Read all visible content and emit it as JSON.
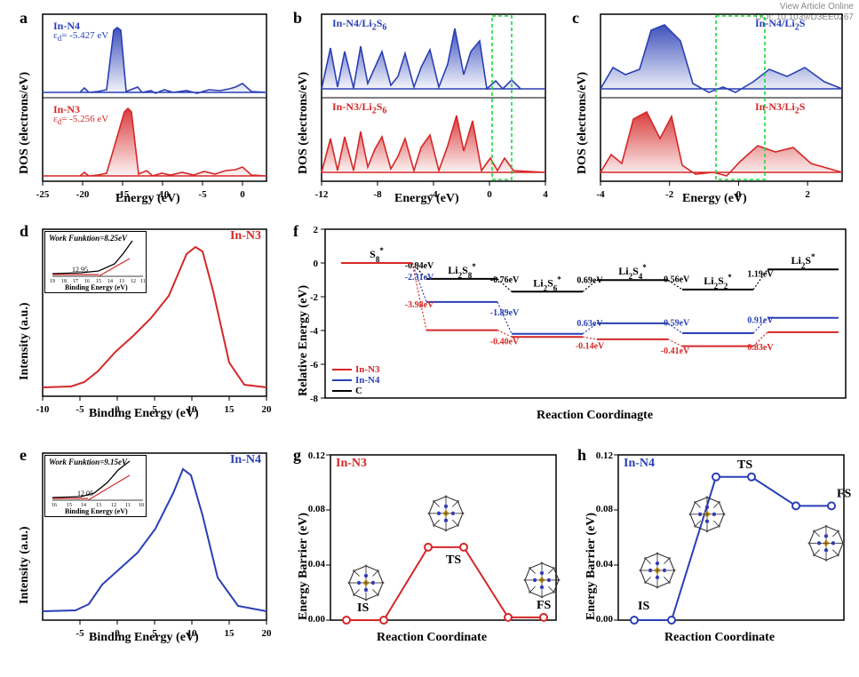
{
  "watermark": {
    "line1": "View Article Online",
    "line2": "DOI: 10.1039/D3EE0267"
  },
  "panel_a": {
    "label": "a",
    "ylabel": "DOS (electrons/eV)",
    "xlabel": "Energy (eV)",
    "s1": {
      "name": "In-N4",
      "color": "#2a3fb5",
      "sub": "ε_d= -5.427 eV"
    },
    "s2": {
      "name": "In-N3",
      "color": "#d52727",
      "sub": "ε_d= -5.256 eV"
    },
    "xlim": [
      -25,
      3
    ],
    "xticks": [
      -25,
      -20,
      -15,
      -10,
      -5,
      0
    ]
  },
  "panel_b": {
    "label": "b",
    "ylabel": "DOS (electrons/eV)",
    "xlabel": "Energy (eV)",
    "s1": {
      "name": "In-N4/Li₂S₆",
      "color": "#2a3fb5"
    },
    "s2": {
      "name": "In-N3/Li₂S₆",
      "color": "#d52727"
    },
    "xlim": [
      -12,
      4
    ],
    "xticks": [
      -12,
      -8,
      -4,
      0,
      4
    ],
    "highlight_green": true
  },
  "panel_c": {
    "label": "c",
    "ylabel": "DOS (electrons/eV)",
    "xlabel": "Energy (eV)",
    "s1": {
      "name": "In-N4/Li₂S",
      "color": "#2a3fb5"
    },
    "s2": {
      "name": "In-N3/Li₂S",
      "color": "#d52727"
    },
    "xlim": [
      -4,
      3
    ],
    "xticks": [
      -4,
      -2,
      0,
      2
    ],
    "highlight_green": true
  },
  "panel_d": {
    "label": "d",
    "ylabel": "Intensity (a.u.)",
    "xlabel": "Binding Energy (eV)",
    "title": "In-N3",
    "title_color": "#d52727",
    "color": "#d52727",
    "xlim": [
      -10,
      20
    ],
    "xticks": [
      -10,
      -5,
      0,
      5,
      10,
      15,
      20
    ],
    "inset": {
      "wf": "Work Funktion=8.25eV",
      "val": "12.95",
      "xlabel": "Binding Energy (eV)",
      "xticks": [
        19,
        18,
        17,
        16,
        15,
        14,
        13,
        12,
        11
      ]
    }
  },
  "panel_e": {
    "label": "e",
    "ylabel": "Intensity (a.u.)",
    "xlabel": "Binding Energy (eV)",
    "title": "In-N4",
    "title_color": "#2a3fb5",
    "color": "#2a3fb5",
    "xlim": [
      -10,
      20
    ],
    "xticks": [
      -10,
      -5,
      0,
      5,
      10,
      15,
      20
    ],
    "inset": {
      "wf": "Work Funktion=9.15eV",
      "val": "12.05",
      "xlabel": "Binding Energy (eV)",
      "xticks": [
        16,
        15,
        14,
        13,
        12,
        11,
        10
      ]
    }
  },
  "panel_f": {
    "label": "f",
    "ylabel": "Relative Energy (eV)",
    "xlabel": "Reaction Coordinagte",
    "ylim": [
      -8,
      2
    ],
    "yticks": [
      -8,
      -6,
      -4,
      -2,
      0,
      2
    ],
    "species": [
      "S₈*",
      "Li₂S₈*",
      "Li₂S₆*",
      "Li₂S₄*",
      "Li₂S₂*",
      "Li₂S*"
    ],
    "legend": {
      "r": "In-N3",
      "b": "In-N4",
      "k": "C"
    },
    "C": {
      "color": "#000000",
      "values": [
        0,
        -0.94,
        -1.7,
        -1.01,
        -1.57,
        -0.38
      ],
      "labels": [
        "-0.94eV",
        "-0.76eV",
        "0.69eV",
        "-0.56eV",
        "1.19eV"
      ]
    },
    "N4": {
      "color": "#2a3fb5",
      "values": [
        0,
        -2.31,
        -4.2,
        -3.57,
        -4.16,
        -3.25
      ],
      "labels": [
        "-2.31eV",
        "-1.89eV",
        "0.63eV",
        "-0.59eV",
        "0.91eV"
      ]
    },
    "N3": {
      "color": "#d52727",
      "values": [
        0,
        -3.98,
        -4.38,
        -4.52,
        -4.93,
        -4.1
      ],
      "labels": [
        "-3.98eV",
        "-0.40eV",
        "-0.14eV",
        "-0.41eV",
        "0.83eV"
      ]
    }
  },
  "panel_g": {
    "label": "g",
    "ylabel": "Energy Barrier (eV)",
    "xlabel": "Reaction Coordinate",
    "title": "In-N3",
    "color": "#d52727",
    "ylim": [
      0,
      0.12
    ],
    "yticks": [
      0.0,
      0.04,
      0.08,
      0.12
    ],
    "states": [
      "IS",
      "TS",
      "FS"
    ],
    "values": [
      0.0,
      0.0,
      0.053,
      0.053,
      0.002,
      0.002
    ]
  },
  "panel_h": {
    "label": "h",
    "ylabel": "Energy Barrier (eV)",
    "xlabel": "Reaction Coordinate",
    "title": "In-N4",
    "color": "#2a3fb5",
    "ylim": [
      0,
      0.12
    ],
    "yticks": [
      0.0,
      0.04,
      0.08,
      0.12
    ],
    "states": [
      "IS",
      "TS",
      "FS"
    ],
    "values": [
      0.0,
      0.0,
      0.104,
      0.104,
      0.083,
      0.083
    ]
  }
}
